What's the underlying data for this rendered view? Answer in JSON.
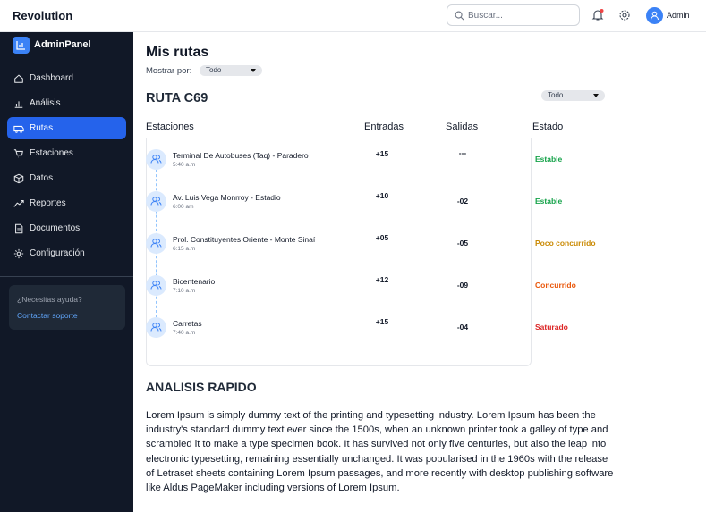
{
  "topbar": {
    "brand": "Revolution",
    "search_placeholder": "Buscar...",
    "user": "Admin"
  },
  "sidebar": {
    "brand": "AdminPanel",
    "active": 2,
    "nav": [
      "Dashboard",
      "Análisis",
      "Rutas",
      "Estaciones",
      "Datos",
      "Reportes",
      "Documentos",
      "Configuración"
    ],
    "help": {
      "question": "¿Necesitas ayuda?",
      "link": "Contactar soporte"
    }
  },
  "page": {
    "title": "Mis rutas",
    "filter_label": "Mostrar por:",
    "filter_value": "Todo"
  },
  "route": {
    "title": "RUTA C69",
    "filter_value": "Todo",
    "columns": [
      "Estaciones",
      "Entradas",
      "Salidas",
      "Estado"
    ],
    "rows": [
      {
        "station": "Terminal De Autobuses (Taq) - Paradero",
        "time": "5:40 a.m",
        "in": "+15",
        "out": "---",
        "status": "Estable",
        "color": "#16a34a"
      },
      {
        "station": "Av. Luis Vega Monrroy - Estadio",
        "time": "6:00 am",
        "in": "+10",
        "out": "-02",
        "status": "Estable",
        "color": "#16a34a"
      },
      {
        "station": "Prol. Constituyentes Oriente - Monte Sinaí",
        "time": "6:15 a.m",
        "in": "+05",
        "out": "-05",
        "status": "Poco concurrido",
        "color": "#ca8a04"
      },
      {
        "station": "Bicentenario",
        "time": "7:10 a.m",
        "in": "+12",
        "out": "-09",
        "status": "Concurrido",
        "color": "#ea580c"
      },
      {
        "station": "Carretas",
        "time": "7:40 a.m",
        "in": "+15",
        "out": "-04",
        "status": "Saturado",
        "color": "#dc2626"
      }
    ]
  },
  "analysis": {
    "title": "ANALISIS RAPIDO",
    "text": "Lorem Ipsum is simply dummy text of the printing and typesetting industry. Lorem Ipsum has been the industry's standard dummy text ever since the 1500s, when an unknown printer took a galley of type and scrambled it to make a type specimen book. It has survived not only five centuries, but also the leap into electronic typesetting, remaining essentially unchanged. It was popularised in the 1960s with the release of Letraset sheets containing Lorem Ipsum passages, and more recently with desktop publishing software like Aldus PageMaker including versions of Lorem Ipsum."
  }
}
